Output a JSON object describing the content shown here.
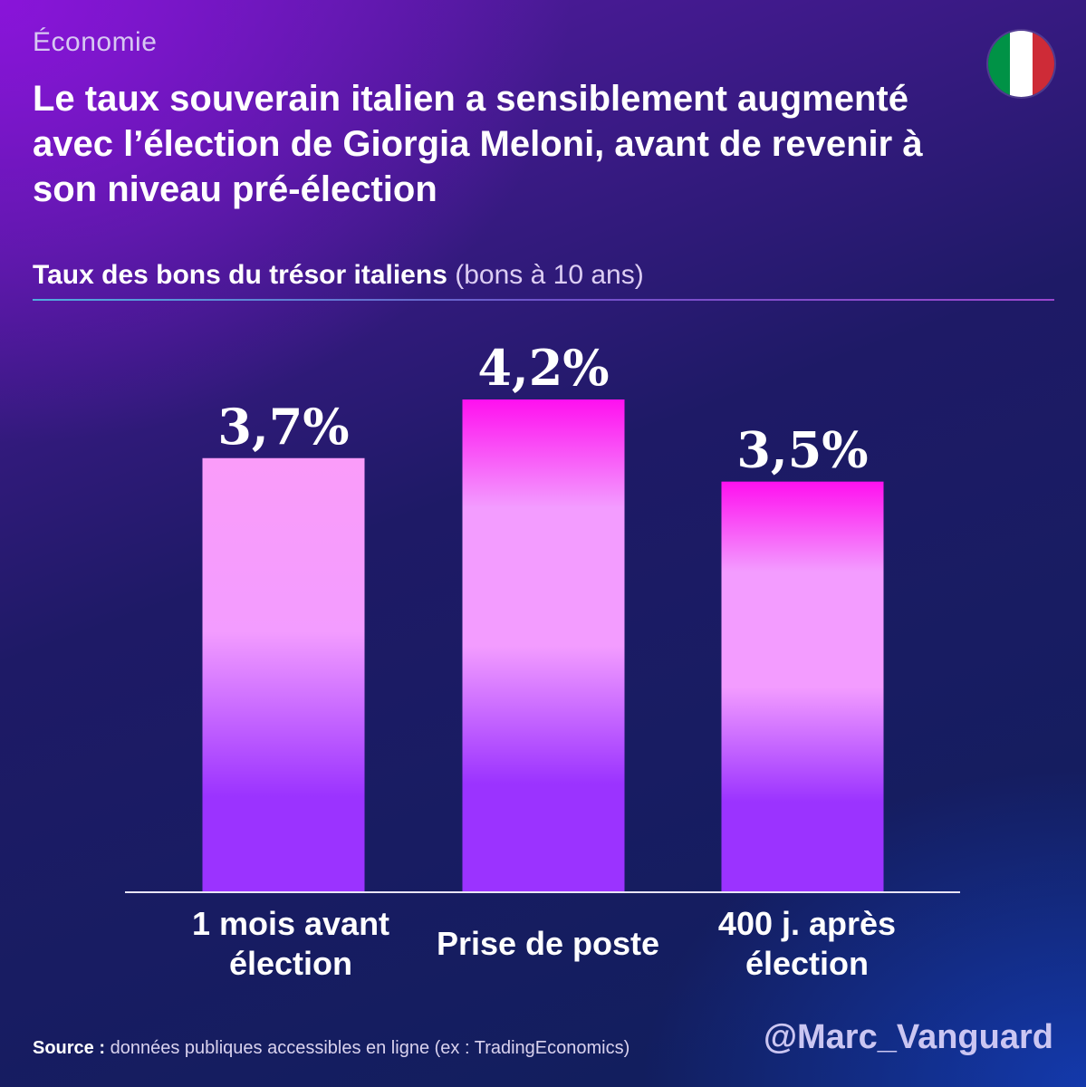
{
  "header": {
    "category": "Économie",
    "title": "Le taux souverain italien a sensiblement augmenté avec l’élection de Giorgia Meloni, avant de revenir à son niveau pré-élection"
  },
  "flag": {
    "colors": [
      "#009246",
      "#ffffff",
      "#ce2b37"
    ],
    "icon": "italy-flag-icon"
  },
  "chart_data": {
    "type": "bar",
    "title": "Taux des bons du trésor italiens",
    "subtitle": "(bons à 10 ans)",
    "categories": [
      [
        "1 mois avant",
        "élection"
      ],
      [
        "Prise de poste"
      ],
      [
        "400 j. après",
        "élection"
      ]
    ],
    "values": [
      3.7,
      4.2,
      3.5
    ],
    "value_labels": [
      "3,7%",
      "4,2%",
      "3,5%"
    ],
    "ylim": [
      0,
      4.2
    ],
    "grid": false,
    "legend": "none",
    "colors": {
      "bar_top": "#ff10ef",
      "bar_mid": "#f39cff",
      "bar_bottom": "#9b33ff",
      "bar_first_top": "#fa9cf9"
    }
  },
  "footer": {
    "source_label": "Source :",
    "source_text": "données publiques accessibles en ligne (ex : TradingEconomics)",
    "handle": "@Marc_Vanguard"
  }
}
